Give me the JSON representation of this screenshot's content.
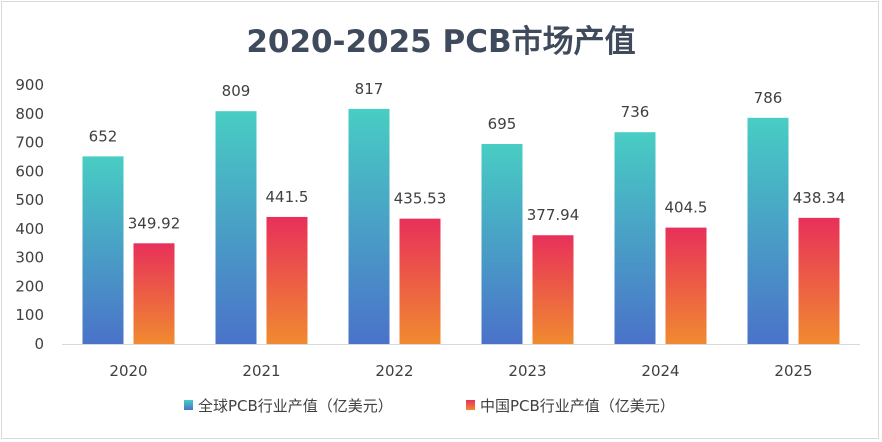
{
  "chart_data": {
    "type": "bar",
    "title": "2020-2025 PCB市场产值",
    "categories": [
      "2020",
      "2021",
      "2022",
      "2023",
      "2024",
      "2025"
    ],
    "series": [
      {
        "name": "全球PCB行业产值（亿美元）",
        "values": [
          652,
          809,
          817,
          695,
          736,
          786
        ],
        "labels": [
          "652",
          "809",
          "817",
          "695",
          "736",
          "786"
        ],
        "color_top": "#48cdc3",
        "color_bottom": "#4a72c9"
      },
      {
        "name": "中国PCB行业产值（亿美元）",
        "values": [
          349.92,
          441.5,
          435.53,
          377.94,
          404.5,
          438.34
        ],
        "labels": [
          "349.92",
          "441.5",
          "435.53",
          "377.94",
          "404.5",
          "438.34"
        ],
        "color_top": "#e8305a",
        "color_bottom": "#f08a30"
      }
    ],
    "yticks": [
      "0",
      "100",
      "200",
      "300",
      "400",
      "500",
      "600",
      "700",
      "800",
      "900"
    ],
    "ylim": [
      0,
      900
    ],
    "grid": false,
    "legend_position": "bottom"
  }
}
